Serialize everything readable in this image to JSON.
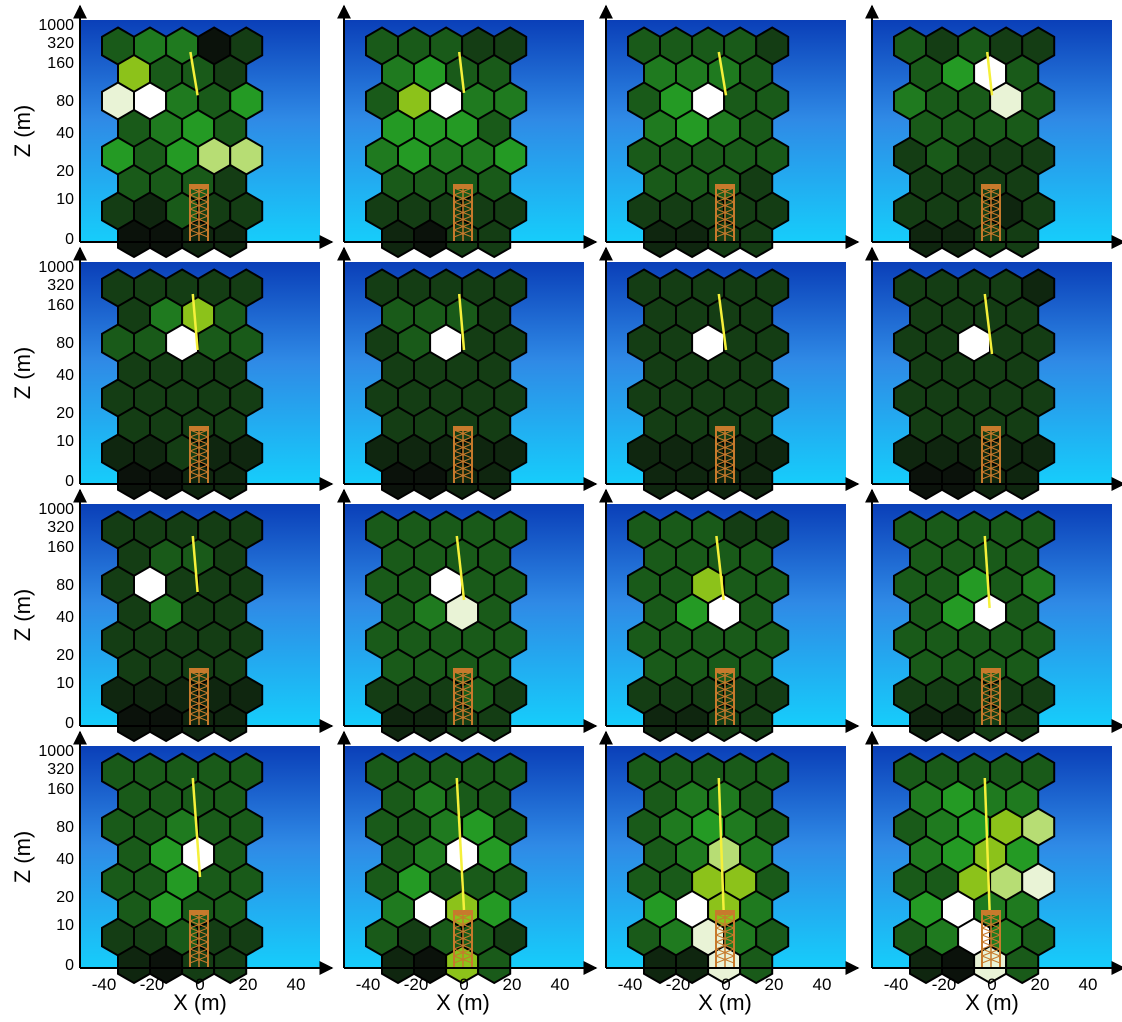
{
  "figure": {
    "x_axis_label": "X (m)",
    "y_axis_label": "Z (m)",
    "x_tick_labels": [
      "-40",
      "-20",
      "0",
      "20",
      "40"
    ],
    "y_tick_labels": [
      "1000",
      "320",
      "160",
      "80",
      "40",
      "20",
      "10",
      "0"
    ],
    "sky_gradient": [
      "#0a3fb8",
      "#2f8ae6",
      "#16cdfb"
    ],
    "tower_color": "#c77a2c",
    "track_color": "#f5f03a",
    "hex_outline_color": "#000000",
    "hex_palette": [
      "#0b120b",
      "#0f260f",
      "#143d14",
      "#195a19",
      "#1f7a1f",
      "#249a24",
      "#8cc21a",
      "#b7dd74",
      "#e9f3d6",
      "#ffffff"
    ],
    "grid_columns": [
      {
        "columns": 5,
        "first_row": 1
      },
      {
        "columns": 4,
        "first_row": 0
      },
      {
        "columns": 5,
        "first_row": 0
      },
      {
        "columns": 4,
        "first_row": 1
      },
      {
        "columns": 5,
        "first_row": 1
      }
    ]
  },
  "panels": [
    {
      "levels": [
        [
          3,
          4,
          4,
          0,
          2
        ],
        [
          6,
          3,
          3,
          2
        ],
        [
          8,
          9,
          4,
          3,
          5
        ],
        [
          3,
          4,
          5,
          3
        ],
        [
          5,
          3,
          5,
          7,
          7
        ],
        [
          3,
          3,
          3,
          2
        ],
        [
          2,
          1,
          3,
          2,
          2
        ],
        [
          0,
          0,
          1,
          1
        ]
      ],
      "track": [
        -4,
        160,
        -1,
        90
      ]
    },
    {
      "levels": [
        [
          3,
          3,
          3,
          2,
          2
        ],
        [
          4,
          5,
          3,
          3
        ],
        [
          3,
          6,
          9,
          4,
          4
        ],
        [
          5,
          5,
          5,
          3
        ],
        [
          4,
          5,
          4,
          4,
          5
        ],
        [
          3,
          3,
          3,
          3
        ],
        [
          2,
          2,
          2,
          2,
          2
        ],
        [
          1,
          0,
          2,
          2
        ]
      ],
      "track": [
        -2,
        160,
        0,
        95
      ]
    },
    {
      "levels": [
        [
          3,
          3,
          3,
          3,
          2
        ],
        [
          4,
          4,
          4,
          3
        ],
        [
          3,
          5,
          9,
          3,
          3
        ],
        [
          4,
          5,
          4,
          3
        ],
        [
          3,
          3,
          3,
          3,
          3
        ],
        [
          3,
          3,
          3,
          2
        ],
        [
          2,
          2,
          2,
          2,
          2
        ],
        [
          1,
          1,
          2,
          2
        ]
      ],
      "track": [
        -3,
        160,
        0,
        90
      ]
    },
    {
      "levels": [
        [
          3,
          2,
          3,
          2,
          2
        ],
        [
          3,
          5,
          9,
          3
        ],
        [
          4,
          3,
          3,
          8,
          3
        ],
        [
          3,
          3,
          3,
          3
        ],
        [
          2,
          3,
          2,
          2,
          2
        ],
        [
          2,
          2,
          2,
          2
        ],
        [
          2,
          2,
          2,
          1,
          2
        ],
        [
          1,
          1,
          2,
          2
        ]
      ],
      "track": [
        -2,
        160,
        0,
        90
      ]
    },
    {
      "levels": [
        [
          2,
          2,
          2,
          2,
          2
        ],
        [
          2,
          4,
          6,
          3
        ],
        [
          3,
          3,
          9,
          3,
          3
        ],
        [
          2,
          2,
          2,
          2
        ],
        [
          2,
          2,
          2,
          2,
          2
        ],
        [
          2,
          2,
          2,
          2
        ],
        [
          1,
          1,
          2,
          1,
          1
        ],
        [
          0,
          0,
          1,
          1
        ]
      ],
      "track": [
        -3,
        160,
        -1,
        70
      ]
    },
    {
      "levels": [
        [
          2,
          2,
          2,
          2,
          2
        ],
        [
          3,
          3,
          3,
          2
        ],
        [
          2,
          3,
          9,
          2,
          2
        ],
        [
          2,
          2,
          2,
          2
        ],
        [
          2,
          2,
          2,
          2,
          2
        ],
        [
          2,
          2,
          2,
          2
        ],
        [
          1,
          1,
          1,
          1,
          1
        ],
        [
          0,
          0,
          1,
          1
        ]
      ],
      "track": [
        -2,
        160,
        0,
        70
      ]
    },
    {
      "levels": [
        [
          2,
          2,
          2,
          2,
          2
        ],
        [
          2,
          2,
          2,
          2
        ],
        [
          2,
          2,
          9,
          2,
          2
        ],
        [
          2,
          2,
          2,
          2
        ],
        [
          2,
          2,
          2,
          2,
          2
        ],
        [
          2,
          2,
          2,
          2
        ],
        [
          1,
          1,
          1,
          1,
          1
        ],
        [
          1,
          1,
          1,
          1
        ]
      ],
      "track": [
        -3,
        160,
        0,
        70
      ]
    },
    {
      "levels": [
        [
          2,
          2,
          2,
          2,
          1
        ],
        [
          2,
          2,
          2,
          2
        ],
        [
          2,
          2,
          9,
          2,
          2
        ],
        [
          2,
          2,
          2,
          2
        ],
        [
          2,
          2,
          2,
          2,
          2
        ],
        [
          2,
          2,
          2,
          2
        ],
        [
          1,
          1,
          1,
          1,
          1
        ],
        [
          0,
          0,
          1,
          1
        ]
      ],
      "track": [
        -3,
        160,
        0,
        65
      ]
    },
    {
      "levels": [
        [
          2,
          2,
          2,
          2,
          2
        ],
        [
          2,
          3,
          3,
          2
        ],
        [
          2,
          9,
          2,
          2,
          2
        ],
        [
          2,
          4,
          2,
          2
        ],
        [
          2,
          2,
          2,
          2,
          2
        ],
        [
          2,
          2,
          2,
          2
        ],
        [
          1,
          1,
          1,
          1,
          1
        ],
        [
          0,
          0,
          1,
          1
        ]
      ],
      "track": [
        -3,
        160,
        -1,
        70
      ]
    },
    {
      "levels": [
        [
          3,
          3,
          3,
          3,
          3
        ],
        [
          3,
          3,
          3,
          3
        ],
        [
          3,
          3,
          9,
          3,
          3
        ],
        [
          3,
          4,
          8,
          3
        ],
        [
          3,
          3,
          3,
          3,
          3
        ],
        [
          3,
          3,
          3,
          3
        ],
        [
          2,
          2,
          2,
          3,
          2
        ],
        [
          1,
          1,
          2,
          2
        ]
      ],
      "track": [
        -3,
        160,
        0,
        60
      ]
    },
    {
      "levels": [
        [
          3,
          3,
          3,
          2,
          2
        ],
        [
          3,
          3,
          3,
          3
        ],
        [
          3,
          3,
          6,
          3,
          3
        ],
        [
          3,
          5,
          9,
          3
        ],
        [
          3,
          3,
          3,
          3,
          3
        ],
        [
          3,
          3,
          3,
          3
        ],
        [
          2,
          2,
          2,
          2,
          2
        ],
        [
          1,
          1,
          2,
          2
        ]
      ],
      "track": [
        -4,
        160,
        -1,
        60
      ]
    },
    {
      "levels": [
        [
          3,
          3,
          3,
          3,
          3
        ],
        [
          3,
          3,
          3,
          3
        ],
        [
          3,
          3,
          5,
          3,
          4
        ],
        [
          3,
          5,
          9,
          3
        ],
        [
          3,
          3,
          3,
          3,
          3
        ],
        [
          3,
          3,
          3,
          3
        ],
        [
          2,
          2,
          2,
          2,
          2
        ],
        [
          1,
          1,
          2,
          2
        ]
      ],
      "track": [
        -3,
        160,
        -1,
        50
      ]
    },
    {
      "levels": [
        [
          3,
          3,
          3,
          3,
          3
        ],
        [
          3,
          3,
          3,
          3
        ],
        [
          3,
          3,
          4,
          3,
          3
        ],
        [
          3,
          5,
          9,
          3
        ],
        [
          3,
          3,
          5,
          3,
          3
        ],
        [
          3,
          5,
          3,
          3
        ],
        [
          2,
          2,
          3,
          2,
          2
        ],
        [
          1,
          0,
          2,
          2
        ]
      ],
      "track": [
        -3,
        160,
        0,
        30
      ]
    },
    {
      "levels": [
        [
          3,
          3,
          3,
          3,
          3
        ],
        [
          3,
          4,
          3,
          3
        ],
        [
          3,
          3,
          4,
          5,
          3
        ],
        [
          3,
          4,
          9,
          5
        ],
        [
          3,
          5,
          3,
          3,
          3
        ],
        [
          4,
          9,
          6,
          5
        ],
        [
          3,
          2,
          3,
          3,
          2
        ],
        [
          1,
          0,
          6,
          3
        ]
      ],
      "track": [
        -3,
        160,
        0,
        15
      ]
    },
    {
      "levels": [
        [
          3,
          3,
          3,
          3,
          3
        ],
        [
          3,
          4,
          4,
          3
        ],
        [
          3,
          4,
          5,
          4,
          3
        ],
        [
          3,
          4,
          7,
          4
        ],
        [
          3,
          3,
          6,
          6,
          3
        ],
        [
          5,
          9,
          6,
          4
        ],
        [
          3,
          4,
          8,
          4,
          3
        ],
        [
          1,
          1,
          8,
          3
        ]
      ],
      "track": [
        -3,
        160,
        -1,
        15
      ]
    },
    {
      "levels": [
        [
          3,
          3,
          3,
          3,
          3
        ],
        [
          4,
          5,
          4,
          4
        ],
        [
          3,
          4,
          5,
          6,
          7
        ],
        [
          4,
          5,
          6,
          5
        ],
        [
          3,
          3,
          6,
          7,
          8
        ],
        [
          5,
          9,
          4,
          4
        ],
        [
          3,
          4,
          9,
          4,
          3
        ],
        [
          1,
          0,
          8,
          3
        ]
      ],
      "track": [
        -3,
        160,
        -1,
        15
      ]
    }
  ]
}
